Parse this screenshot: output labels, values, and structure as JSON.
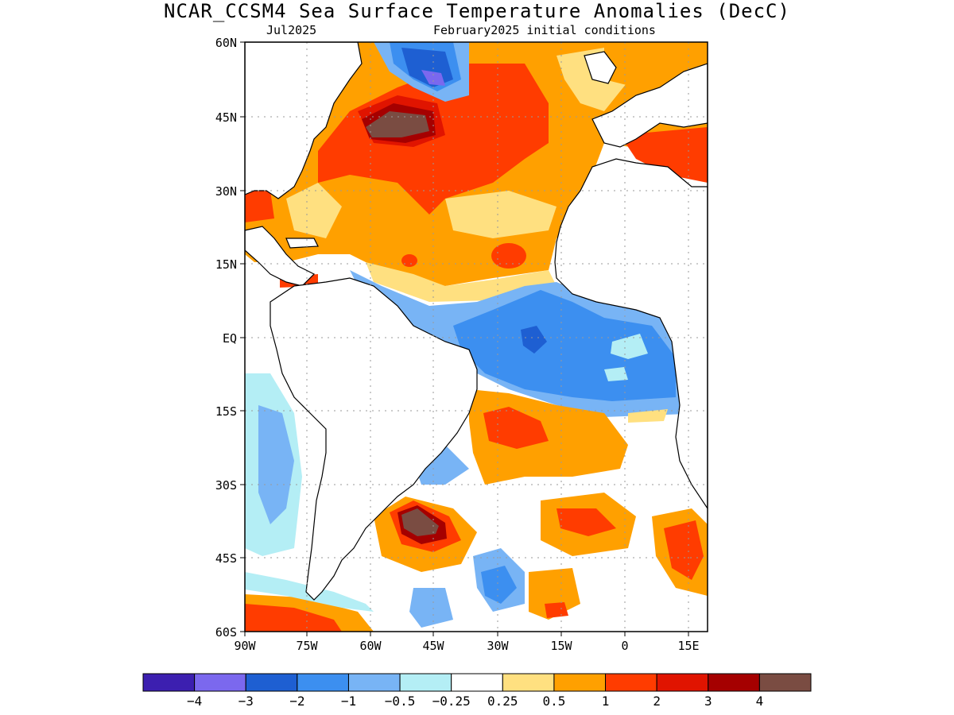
{
  "title": "NCAR_CCSM4 Sea Surface Temperature Anomalies (DecC)",
  "subtitle_left": "Jul2025",
  "subtitle_right": "February2025 initial conditions",
  "lat_labels": [
    "60N",
    "45N",
    "30N",
    "15N",
    "EQ",
    "15S",
    "30S",
    "45S",
    "60S"
  ],
  "lon_labels": [
    "90W",
    "75W",
    "60W",
    "45W",
    "30W",
    "15W",
    "0",
    "15E"
  ],
  "colorbar": {
    "colors": [
      "#3c1fb0",
      "#7b68ee",
      "#1e5fd2",
      "#3c8ff0",
      "#78b4f5",
      "#b4eef5",
      "#ffffff",
      "#ffe080",
      "#ffa000",
      "#ff3c00",
      "#e01400",
      "#a50000",
      "#7a4c42"
    ],
    "labels": [
      "−4",
      "−3",
      "−2",
      "−1",
      "−0.5",
      "−0.25",
      "0.25",
      "0.5",
      "1",
      "2",
      "3",
      "4"
    ]
  },
  "legend_units": "DecC"
}
